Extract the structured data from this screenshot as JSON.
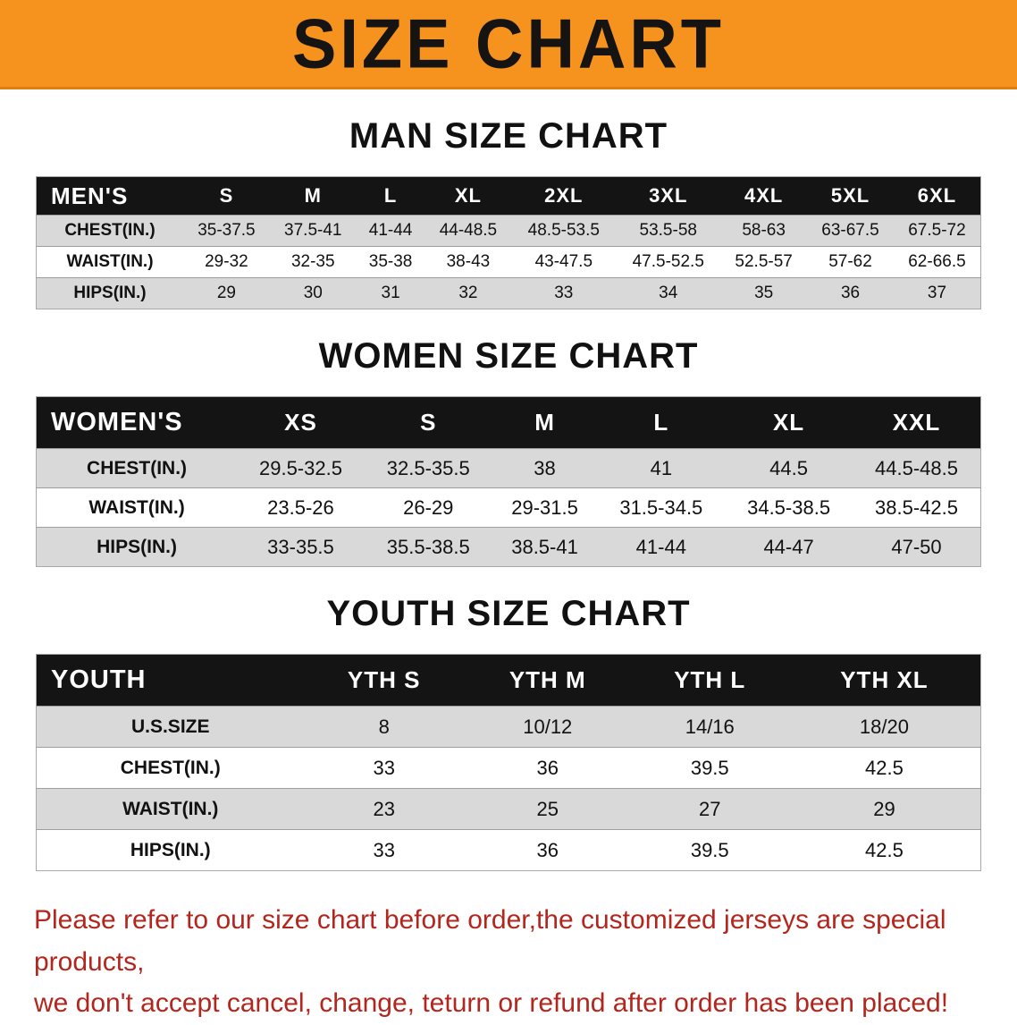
{
  "banner": {
    "title": "SIZE CHART"
  },
  "colors": {
    "banner_bg": "#f6921e",
    "table_header_bg": "#141414",
    "table_row_alt": "#d9d9d9",
    "disclaimer_red": "#b3261e"
  },
  "sections": [
    {
      "heading": "MAN SIZE CHART",
      "table": {
        "header": [
          "MEN'S",
          "S",
          "M",
          "L",
          "XL",
          "2XL",
          "3XL",
          "4XL",
          "5XL",
          "6XL"
        ],
        "rows": [
          {
            "label": "CHEST(IN.)",
            "values": [
              "35-37.5",
              "37.5-41",
              "41-44",
              "44-48.5",
              "48.5-53.5",
              "53.5-58",
              "58-63",
              "63-67.5",
              "67.5-72"
            ]
          },
          {
            "label": "WAIST(IN.)",
            "values": [
              "29-32",
              "32-35",
              "35-38",
              "38-43",
              "43-47.5",
              "47.5-52.5",
              "52.5-57",
              "57-62",
              "62-66.5"
            ]
          },
          {
            "label": "HIPS(IN.)",
            "values": [
              "29",
              "30",
              "31",
              "32",
              "33",
              "34",
              "35",
              "36",
              "37"
            ]
          }
        ]
      }
    },
    {
      "heading": "WOMEN SIZE CHART",
      "table": {
        "header": [
          "WOMEN'S",
          "XS",
          "S",
          "M",
          "L",
          "XL",
          "XXL"
        ],
        "rows": [
          {
            "label": "CHEST(IN.)",
            "values": [
              "29.5-32.5",
              "32.5-35.5",
              "38",
              "41",
              "44.5",
              "44.5-48.5"
            ]
          },
          {
            "label": "WAIST(IN.)",
            "values": [
              "23.5-26",
              "26-29",
              "29-31.5",
              "31.5-34.5",
              "34.5-38.5",
              "38.5-42.5"
            ]
          },
          {
            "label": "HIPS(IN.)",
            "values": [
              "33-35.5",
              "35.5-38.5",
              "38.5-41",
              "41-44",
              "44-47",
              "47-50"
            ]
          }
        ]
      }
    },
    {
      "heading": "YOUTH SIZE CHART",
      "table": {
        "header": [
          "YOUTH",
          "YTH S",
          "YTH M",
          "YTH L",
          "YTH XL"
        ],
        "rows": [
          {
            "label": "U.S.SIZE",
            "values": [
              "8",
              "10/12",
              "14/16",
              "18/20"
            ]
          },
          {
            "label": "CHEST(IN.)",
            "values": [
              "33",
              "36",
              "39.5",
              "42.5"
            ]
          },
          {
            "label": "WAIST(IN.)",
            "values": [
              "23",
              "25",
              "27",
              "29"
            ]
          },
          {
            "label": "HIPS(IN.)",
            "values": [
              "33",
              "36",
              "39.5",
              "42.5"
            ]
          }
        ]
      }
    }
  ],
  "footer": {
    "line1": "Please refer to our size chart before order,the customized jerseys are special products,",
    "line2": "we don't accept cancel, change, teturn or refund after order has been placed!"
  }
}
